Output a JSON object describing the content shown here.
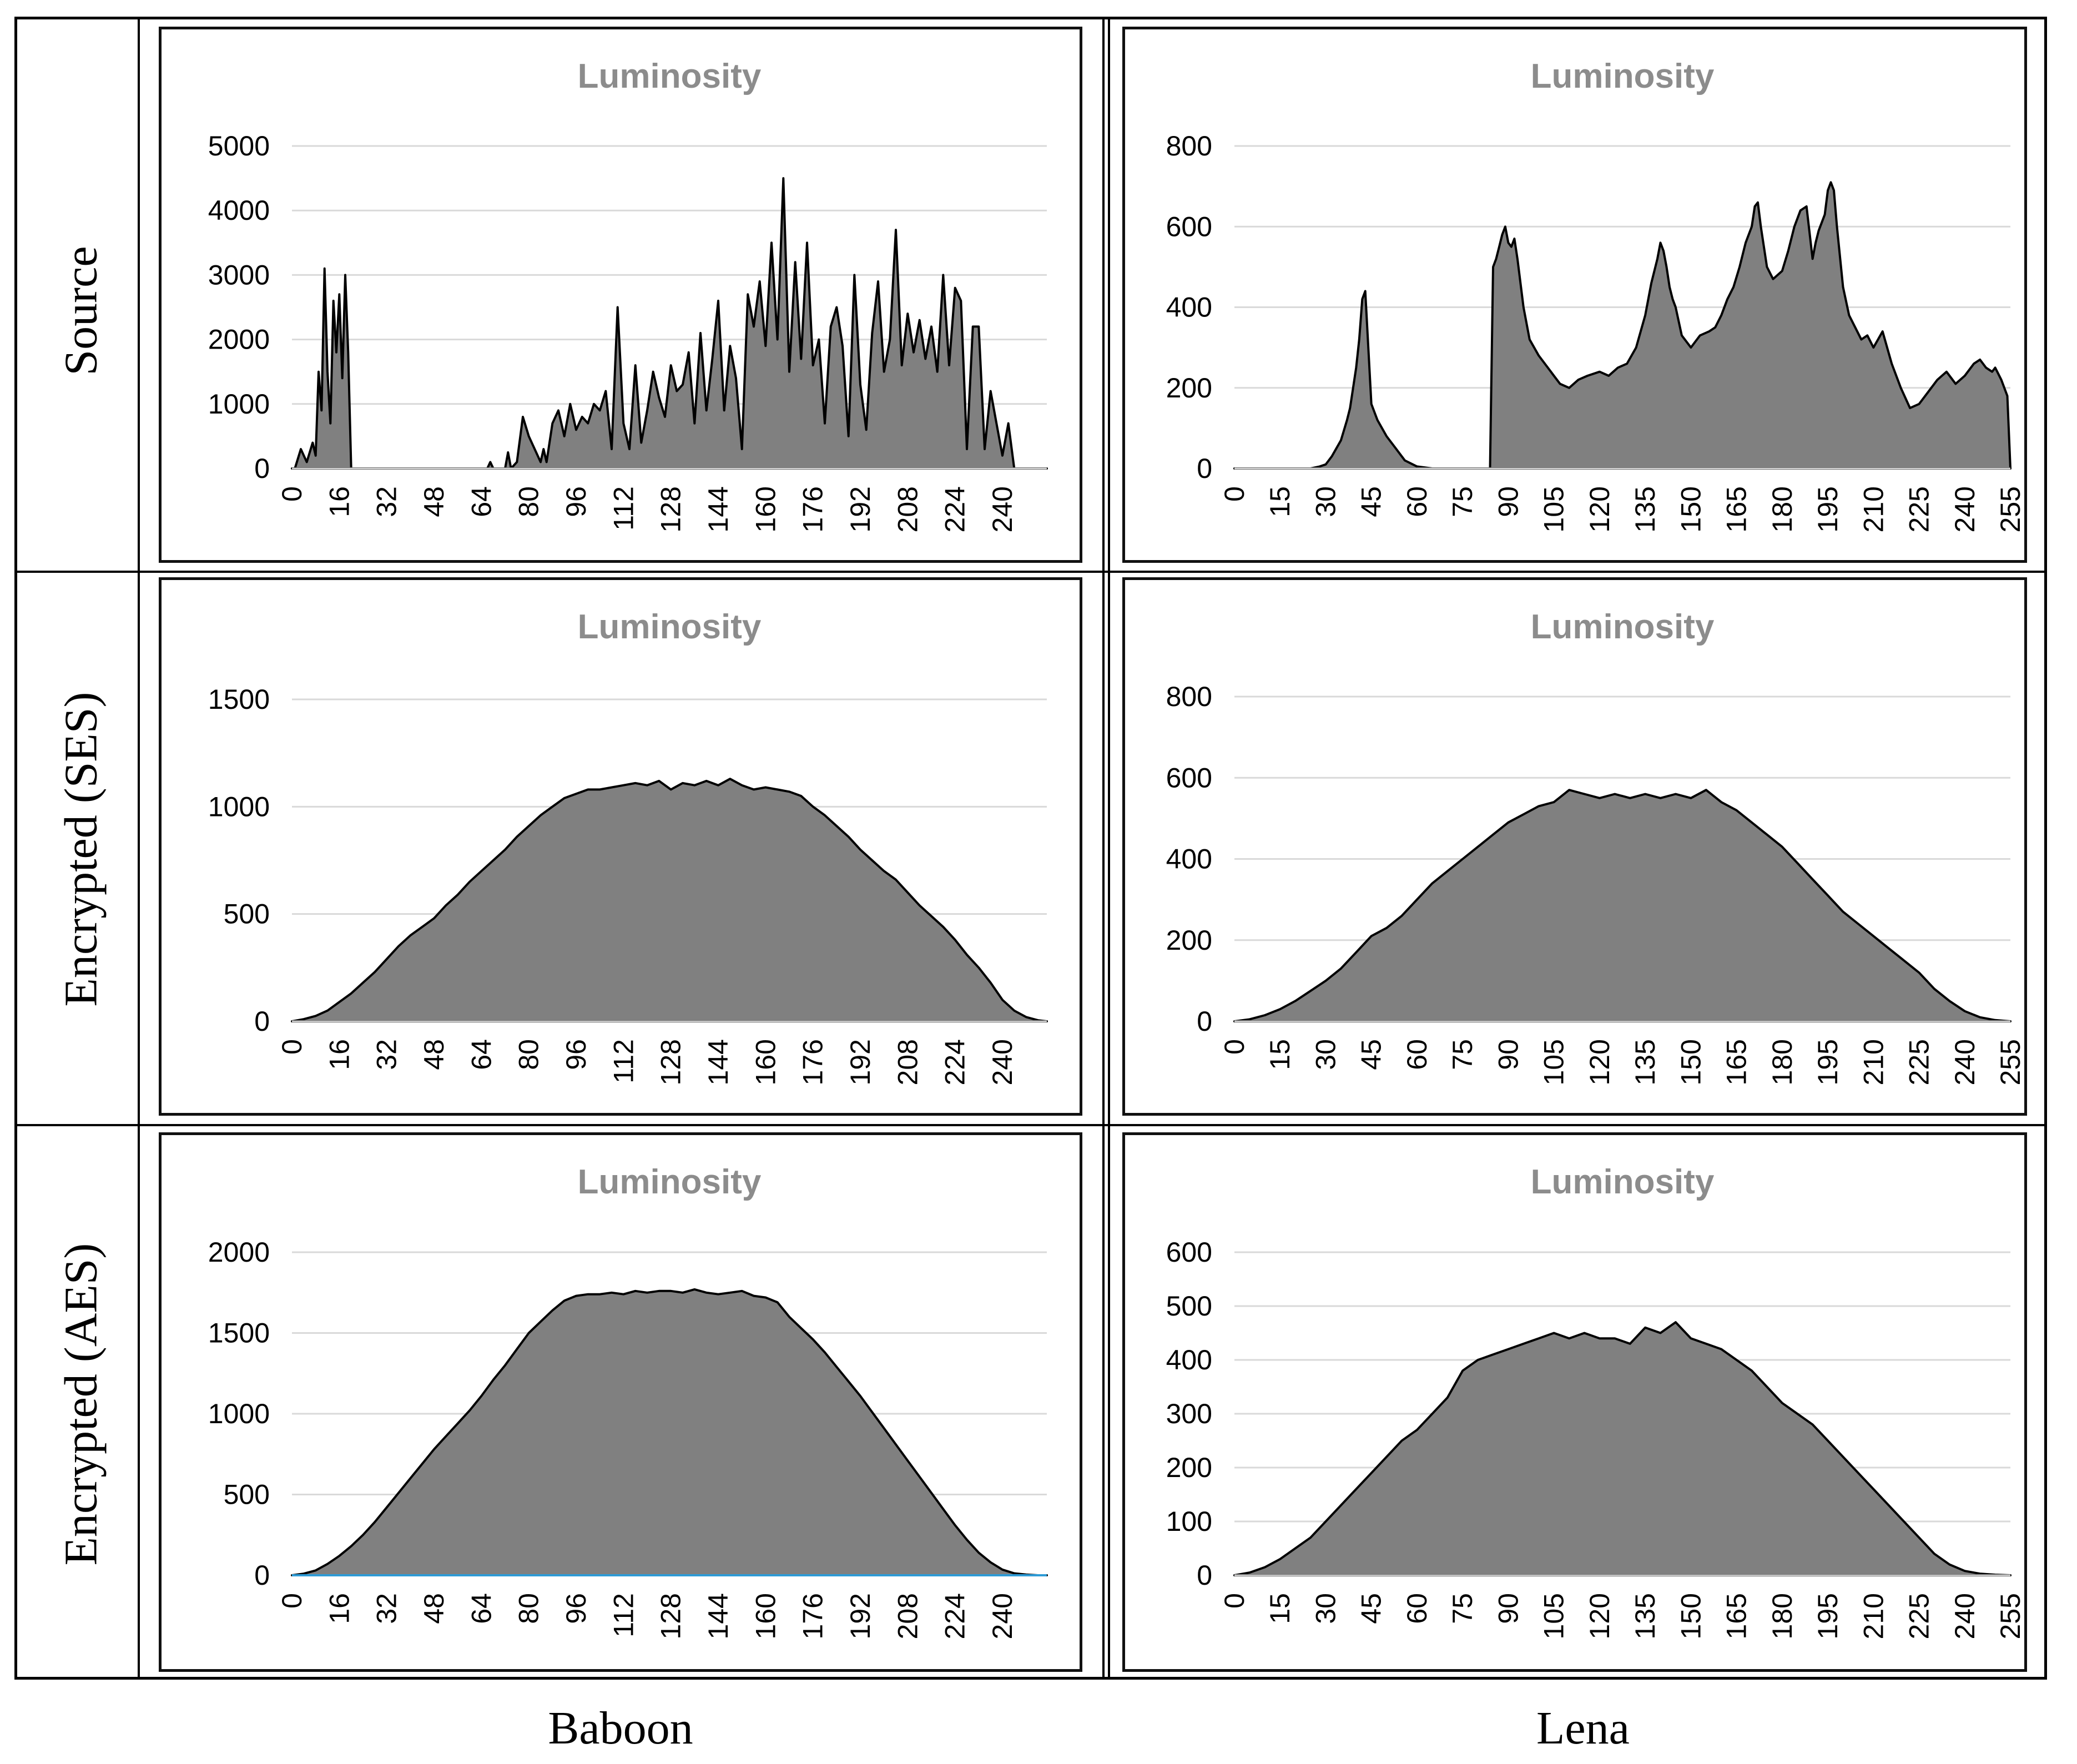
{
  "row_labels": [
    "Source",
    "Encrypted (SES)",
    "Encrypted (AES)"
  ],
  "col_labels": [
    "Baboon",
    "Lena"
  ],
  "chart_data": [
    {
      "id": "baboon-source",
      "type": "area",
      "title": "Luminosity",
      "xlim": [
        0,
        255
      ],
      "ylim": [
        0,
        5000
      ],
      "yticks": [
        0,
        1000,
        2000,
        3000,
        4000,
        5000
      ],
      "xticks": [
        0,
        16,
        32,
        48,
        64,
        80,
        96,
        112,
        128,
        144,
        160,
        176,
        192,
        208,
        224,
        240
      ],
      "x": [
        0,
        1,
        3,
        5,
        7,
        8,
        9,
        10,
        11,
        12,
        13,
        14,
        15,
        16,
        17,
        18,
        19,
        20,
        21,
        22,
        28,
        60,
        66,
        67,
        68,
        72,
        73,
        74,
        76,
        78,
        80,
        82,
        84,
        85,
        86,
        88,
        90,
        92,
        94,
        96,
        98,
        100,
        102,
        104,
        106,
        108,
        110,
        112,
        114,
        116,
        118,
        120,
        122,
        124,
        126,
        128,
        130,
        132,
        134,
        136,
        138,
        140,
        142,
        144,
        146,
        148,
        150,
        152,
        154,
        156,
        158,
        160,
        162,
        164,
        166,
        168,
        170,
        172,
        174,
        176,
        178,
        180,
        182,
        184,
        186,
        188,
        190,
        192,
        194,
        196,
        198,
        200,
        202,
        204,
        206,
        208,
        210,
        212,
        214,
        216,
        218,
        220,
        222,
        224,
        226,
        228,
        230,
        232,
        234,
        236,
        238,
        240,
        242,
        244,
        246,
        248,
        250,
        252,
        255
      ],
      "values": [
        0,
        0,
        300,
        100,
        400,
        200,
        1500,
        900,
        3100,
        1500,
        700,
        2600,
        1800,
        2700,
        1400,
        3000,
        1800,
        0,
        0,
        0,
        0,
        0,
        0,
        100,
        0,
        0,
        250,
        0,
        100,
        800,
        500,
        300,
        100,
        300,
        100,
        700,
        900,
        500,
        1000,
        600,
        800,
        700,
        1000,
        900,
        1200,
        300,
        2500,
        700,
        300,
        1600,
        400,
        900,
        1500,
        1100,
        800,
        1600,
        1200,
        1300,
        1800,
        700,
        2100,
        900,
        1700,
        2600,
        900,
        1900,
        1400,
        300,
        2700,
        2200,
        2900,
        1900,
        3500,
        2000,
        4500,
        1500,
        3200,
        1700,
        3500,
        1600,
        2000,
        700,
        2200,
        2500,
        1900,
        500,
        3000,
        1300,
        600,
        2100,
        2900,
        1500,
        2000,
        3700,
        1600,
        2400,
        1800,
        2300,
        1700,
        2200,
        1500,
        3000,
        1600,
        2800,
        2600,
        300,
        2200,
        2200,
        300,
        1200,
        700,
        200,
        700,
        0,
        0,
        0,
        0,
        0,
        0
      ]
    },
    {
      "id": "lena-source",
      "type": "area",
      "title": "Luminosity",
      "xlim": [
        0,
        255
      ],
      "ylim": [
        0,
        800
      ],
      "yticks": [
        0,
        200,
        400,
        600,
        800
      ],
      "xticks": [
        0,
        15,
        30,
        45,
        60,
        75,
        90,
        105,
        120,
        135,
        150,
        165,
        180,
        195,
        210,
        225,
        240,
        255
      ],
      "x": [
        0,
        25,
        28,
        30,
        32,
        35,
        37,
        38,
        39,
        40,
        41,
        42,
        43,
        44,
        45,
        47,
        50,
        53,
        56,
        60,
        65,
        70,
        84,
        85,
        86,
        87,
        88,
        89,
        90,
        91,
        92,
        93,
        95,
        97,
        100,
        103,
        105,
        107,
        110,
        113,
        116,
        120,
        123,
        126,
        129,
        132,
        135,
        137,
        139,
        140,
        141,
        142,
        143,
        144,
        145,
        147,
        150,
        153,
        156,
        158,
        160,
        162,
        164,
        166,
        168,
        170,
        171,
        172,
        173,
        175,
        177,
        180,
        182,
        184,
        186,
        188,
        190,
        191,
        192,
        194,
        195,
        196,
        197,
        198,
        200,
        202,
        204,
        206,
        208,
        210,
        213,
        216,
        219,
        222,
        225,
        228,
        231,
        234,
        237,
        240,
        243,
        245,
        247,
        249,
        250,
        252,
        254,
        255
      ],
      "values": [
        0,
        0,
        5,
        10,
        30,
        70,
        120,
        150,
        200,
        250,
        320,
        420,
        440,
        300,
        160,
        120,
        80,
        50,
        20,
        5,
        0,
        0,
        0,
        500,
        520,
        550,
        580,
        600,
        560,
        550,
        570,
        520,
        400,
        320,
        280,
        250,
        230,
        210,
        200,
        220,
        230,
        240,
        230,
        250,
        260,
        300,
        380,
        460,
        520,
        560,
        540,
        500,
        450,
        420,
        400,
        330,
        300,
        330,
        340,
        350,
        380,
        420,
        450,
        500,
        560,
        600,
        650,
        660,
        600,
        500,
        470,
        490,
        540,
        600,
        640,
        650,
        520,
        560,
        590,
        630,
        690,
        710,
        690,
        600,
        450,
        380,
        350,
        320,
        330,
        300,
        340,
        260,
        200,
        150,
        160,
        190,
        220,
        240,
        210,
        230,
        260,
        270,
        250,
        240,
        250,
        220,
        180,
        0
      ]
    },
    {
      "id": "baboon-ses",
      "type": "area",
      "title": "Luminosity",
      "xlim": [
        0,
        255
      ],
      "ylim": [
        0,
        1500
      ],
      "yticks": [
        0,
        500,
        1000,
        1500
      ],
      "xticks": [
        0,
        16,
        32,
        48,
        64,
        80,
        96,
        112,
        128,
        144,
        160,
        176,
        192,
        208,
        224,
        240
      ],
      "x": [
        0,
        4,
        8,
        12,
        16,
        20,
        24,
        28,
        32,
        36,
        40,
        44,
        48,
        52,
        56,
        60,
        64,
        68,
        72,
        76,
        80,
        84,
        88,
        92,
        96,
        100,
        104,
        108,
        112,
        116,
        120,
        124,
        128,
        132,
        136,
        140,
        144,
        148,
        152,
        156,
        160,
        164,
        168,
        172,
        176,
        180,
        184,
        188,
        192,
        196,
        200,
        204,
        208,
        212,
        216,
        220,
        224,
        228,
        232,
        236,
        240,
        244,
        248,
        252,
        255
      ],
      "values": [
        0,
        10,
        25,
        50,
        90,
        130,
        180,
        230,
        290,
        350,
        400,
        440,
        480,
        540,
        590,
        650,
        700,
        750,
        800,
        860,
        910,
        960,
        1000,
        1040,
        1060,
        1080,
        1080,
        1090,
        1100,
        1110,
        1100,
        1120,
        1080,
        1110,
        1100,
        1120,
        1100,
        1130,
        1100,
        1080,
        1090,
        1080,
        1070,
        1050,
        1000,
        960,
        910,
        860,
        800,
        750,
        700,
        660,
        600,
        540,
        490,
        440,
        380,
        310,
        250,
        180,
        100,
        50,
        20,
        5,
        0
      ]
    },
    {
      "id": "lena-ses",
      "type": "area",
      "title": "Luminosity",
      "xlim": [
        0,
        255
      ],
      "ylim": [
        0,
        800
      ],
      "yticks": [
        0,
        200,
        400,
        600,
        800
      ],
      "xticks": [
        0,
        15,
        30,
        45,
        60,
        75,
        90,
        105,
        120,
        135,
        150,
        165,
        180,
        195,
        210,
        225,
        240,
        255
      ],
      "x": [
        0,
        5,
        10,
        15,
        20,
        25,
        30,
        35,
        40,
        45,
        50,
        55,
        60,
        65,
        70,
        75,
        80,
        85,
        90,
        95,
        100,
        105,
        110,
        115,
        120,
        125,
        130,
        135,
        140,
        145,
        150,
        155,
        160,
        165,
        170,
        175,
        180,
        185,
        190,
        195,
        200,
        205,
        210,
        215,
        220,
        225,
        230,
        235,
        240,
        245,
        250,
        255
      ],
      "values": [
        0,
        5,
        15,
        30,
        50,
        75,
        100,
        130,
        170,
        210,
        230,
        260,
        300,
        340,
        370,
        400,
        430,
        460,
        490,
        510,
        530,
        540,
        570,
        560,
        550,
        560,
        550,
        560,
        550,
        560,
        550,
        570,
        540,
        520,
        490,
        460,
        430,
        390,
        350,
        310,
        270,
        240,
        210,
        180,
        150,
        120,
        80,
        50,
        25,
        10,
        3,
        0
      ]
    },
    {
      "id": "baboon-aes",
      "type": "area",
      "title": "Luminosity",
      "xlim": [
        0,
        255
      ],
      "ylim": [
        0,
        2000
      ],
      "yticks": [
        0,
        500,
        1000,
        1500,
        2000
      ],
      "xticks": [
        0,
        16,
        32,
        48,
        64,
        80,
        96,
        112,
        128,
        144,
        160,
        176,
        192,
        208,
        224,
        240
      ],
      "x": [
        0,
        4,
        8,
        12,
        16,
        20,
        24,
        28,
        32,
        36,
        40,
        44,
        48,
        52,
        56,
        60,
        64,
        68,
        72,
        76,
        80,
        84,
        88,
        92,
        96,
        100,
        104,
        108,
        112,
        116,
        120,
        124,
        128,
        132,
        136,
        140,
        144,
        148,
        152,
        156,
        160,
        164,
        168,
        172,
        176,
        180,
        184,
        188,
        192,
        196,
        200,
        204,
        208,
        212,
        216,
        220,
        224,
        228,
        232,
        236,
        240,
        244,
        248,
        252,
        255
      ],
      "values": [
        0,
        10,
        30,
        70,
        120,
        180,
        250,
        330,
        420,
        510,
        600,
        690,
        780,
        860,
        940,
        1020,
        1110,
        1210,
        1300,
        1400,
        1500,
        1570,
        1640,
        1700,
        1730,
        1740,
        1740,
        1750,
        1740,
        1760,
        1750,
        1760,
        1760,
        1750,
        1770,
        1750,
        1740,
        1750,
        1760,
        1730,
        1720,
        1690,
        1600,
        1530,
        1460,
        1380,
        1290,
        1200,
        1110,
        1010,
        910,
        810,
        710,
        610,
        510,
        410,
        310,
        220,
        140,
        80,
        35,
        12,
        4,
        0,
        0
      ]
    },
    {
      "id": "lena-aes",
      "type": "area",
      "title": "Luminosity",
      "xlim": [
        0,
        255
      ],
      "ylim": [
        0,
        600
      ],
      "yticks": [
        0,
        100,
        200,
        300,
        400,
        500,
        600
      ],
      "xticks": [
        0,
        15,
        30,
        45,
        60,
        75,
        90,
        105,
        120,
        135,
        150,
        165,
        180,
        195,
        210,
        225,
        240,
        255
      ],
      "x": [
        0,
        5,
        10,
        15,
        20,
        25,
        30,
        35,
        40,
        45,
        50,
        55,
        60,
        65,
        70,
        75,
        80,
        85,
        90,
        95,
        100,
        105,
        110,
        115,
        120,
        125,
        130,
        135,
        140,
        145,
        150,
        155,
        160,
        165,
        170,
        175,
        180,
        185,
        190,
        195,
        200,
        205,
        210,
        215,
        220,
        225,
        230,
        235,
        240,
        245,
        250,
        255
      ],
      "values": [
        0,
        5,
        15,
        30,
        50,
        70,
        100,
        130,
        160,
        190,
        220,
        250,
        270,
        300,
        330,
        380,
        400,
        410,
        420,
        430,
        440,
        450,
        440,
        450,
        440,
        440,
        430,
        460,
        450,
        470,
        440,
        430,
        420,
        400,
        380,
        350,
        320,
        300,
        280,
        250,
        220,
        190,
        160,
        130,
        100,
        70,
        40,
        20,
        8,
        3,
        1,
        0
      ]
    }
  ]
}
